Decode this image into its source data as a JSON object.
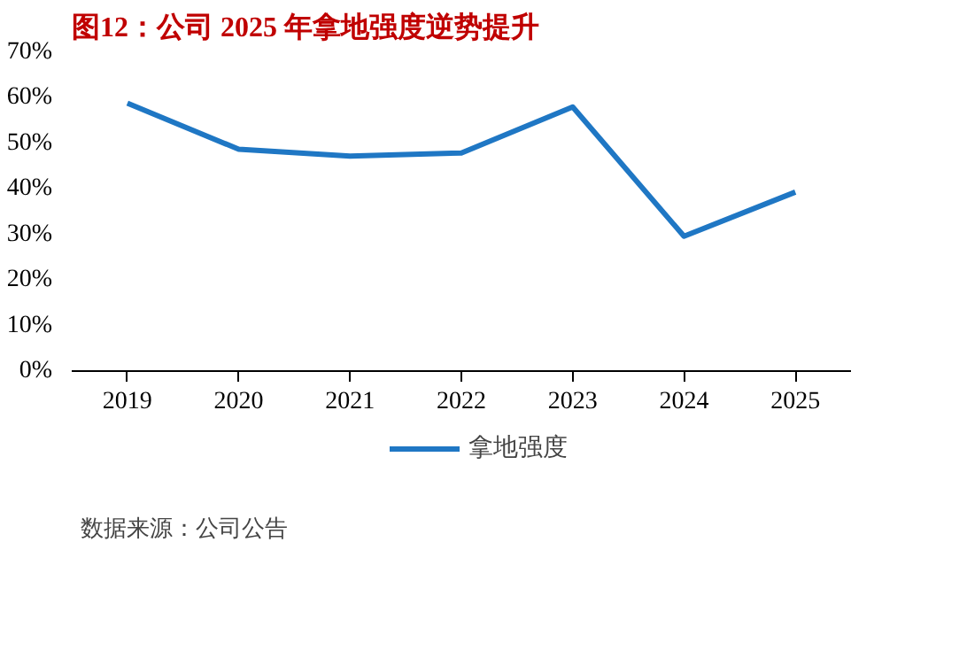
{
  "chart_data": {
    "type": "line",
    "title": "图12：公司 2025 年拿地强度逆势提升",
    "categories": [
      "2019",
      "2020",
      "2021",
      "2022",
      "2023",
      "2024",
      "2025"
    ],
    "series": [
      {
        "name": "拿地强度",
        "color": "#1f77c4",
        "values": [
          58.8,
          48.7,
          47.2,
          47.9,
          58.0,
          29.6,
          39.3
        ]
      }
    ],
    "ylim": [
      0,
      70
    ],
    "yticks": [
      {
        "value": 0,
        "label": "0%"
      },
      {
        "value": 10,
        "label": "10%"
      },
      {
        "value": 20,
        "label": "20%"
      },
      {
        "value": 30,
        "label": "30%"
      },
      {
        "value": 40,
        "label": "40%"
      },
      {
        "value": 50,
        "label": "50%"
      },
      {
        "value": 60,
        "label": "60%"
      },
      {
        "value": 70,
        "label": "70%"
      }
    ],
    "grid": false,
    "legend": "bottom",
    "marker": "none",
    "line_style": "solid",
    "annotations": [
      "数据来源：公司公告"
    ]
  }
}
